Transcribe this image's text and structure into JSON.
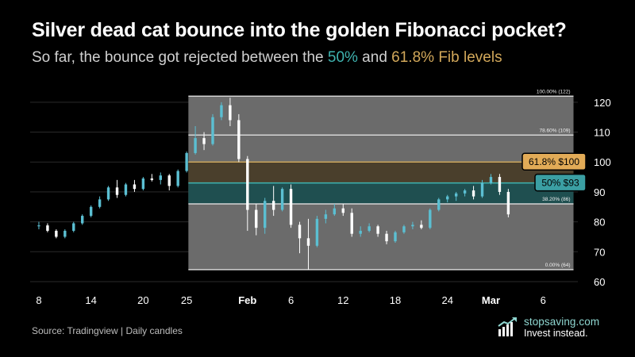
{
  "header": {
    "title": "Silver dead cat bounce into the golden Fibonacci pocket?",
    "subtitle_prefix": "So far, the bounce got rejected between the ",
    "subtitle_50": "50%",
    "subtitle_mid": " and ",
    "subtitle_618": "61.8% Fib levels"
  },
  "footer": {
    "source": "Source: Tradingview | Daily candles",
    "brand_name": "stopsaving.com",
    "brand_tagline": "Invest instead."
  },
  "colors": {
    "background": "#000000",
    "title": "#ffffff",
    "subtitle": "#cfcfcf",
    "teal": "#3fb3b0",
    "gold": "#d2a85a",
    "fib_box_fill": "#6b6b6b",
    "golden_pocket_fill": "#4a3f2c",
    "half_zone_fill": "#1f4f50",
    "candle_up": "#5bbfd2",
    "candle_down": "#ffffff",
    "fib_line": "#d4d4d4",
    "gold_line": "#c9a45b",
    "gridline": "#2a2a2a",
    "axis_text": "#ffffff"
  },
  "icons": {
    "brand": "bar-chart-growth-icon"
  },
  "chart_data": {
    "type": "candlestick",
    "y_axis": {
      "ylim": [
        60,
        125
      ],
      "ticks": [
        60,
        70,
        80,
        90,
        100,
        110,
        120
      ],
      "position": "right"
    },
    "x_axis": {
      "tick_labels": [
        {
          "text": "8",
          "index": 0,
          "bold": false
        },
        {
          "text": "14",
          "index": 6,
          "bold": false
        },
        {
          "text": "20",
          "index": 12,
          "bold": false
        },
        {
          "text": "25",
          "index": 17,
          "bold": false
        },
        {
          "text": "Feb",
          "index": 24,
          "bold": true
        },
        {
          "text": "6",
          "index": 29,
          "bold": false
        },
        {
          "text": "12",
          "index": 35,
          "bold": false
        },
        {
          "text": "18",
          "index": 41,
          "bold": false
        },
        {
          "text": "24",
          "index": 47,
          "bold": false
        },
        {
          "text": "Mar",
          "index": 52,
          "bold": true
        },
        {
          "text": "6",
          "index": 58,
          "bold": false
        }
      ],
      "visible_range": [
        -1,
        62
      ]
    },
    "fib_box": {
      "start_index": 17.2,
      "end_index": 61.5
    },
    "fib_levels": [
      {
        "ratio_label": "100.00% (122)",
        "value": 122,
        "style": "line"
      },
      {
        "ratio_label": "78.60% (109)",
        "value": 109,
        "style": "line"
      },
      {
        "ratio_label": "61.8% $100",
        "value": 100,
        "style": "badge-gold"
      },
      {
        "ratio_label": "50% $93",
        "value": 93,
        "style": "badge-teal"
      },
      {
        "ratio_label": "38.20% (86)",
        "value": 86,
        "style": "line"
      },
      {
        "ratio_label": "0.00% (64)",
        "value": 64,
        "style": "line"
      }
    ],
    "zones": [
      {
        "name": "golden pocket",
        "from": 93,
        "to": 100
      },
      {
        "name": "50% to 38.2%",
        "from": 86,
        "to": 93
      }
    ],
    "candles": [
      {
        "i": 0,
        "o": 78.5,
        "h": 80,
        "l": 77.5,
        "c": 78.8
      },
      {
        "i": 1,
        "o": 78.8,
        "h": 79.5,
        "l": 76.5,
        "c": 77.0
      },
      {
        "i": 2,
        "o": 77.0,
        "h": 77.5,
        "l": 74.5,
        "c": 75.0
      },
      {
        "i": 3,
        "o": 75.0,
        "h": 77.5,
        "l": 74.5,
        "c": 77.0
      },
      {
        "i": 4,
        "o": 77.0,
        "h": 80.0,
        "l": 76.5,
        "c": 79.5
      },
      {
        "i": 5,
        "o": 79.5,
        "h": 82.5,
        "l": 79.0,
        "c": 82.0
      },
      {
        "i": 6,
        "o": 82.0,
        "h": 85.5,
        "l": 81.5,
        "c": 85.0
      },
      {
        "i": 7,
        "o": 85.0,
        "h": 88.5,
        "l": 84.5,
        "c": 87.5
      },
      {
        "i": 8,
        "o": 87.5,
        "h": 92.0,
        "l": 87.0,
        "c": 91.5
      },
      {
        "i": 9,
        "o": 91.5,
        "h": 94.0,
        "l": 88.0,
        "c": 89.0
      },
      {
        "i": 10,
        "o": 89.0,
        "h": 93.0,
        "l": 88.5,
        "c": 92.5
      },
      {
        "i": 11,
        "o": 92.5,
        "h": 94.0,
        "l": 90.0,
        "c": 91.0
      },
      {
        "i": 12,
        "o": 91.0,
        "h": 95.0,
        "l": 90.5,
        "c": 94.5
      },
      {
        "i": 13,
        "o": 94.5,
        "h": 96.0,
        "l": 93.5,
        "c": 94.0
      },
      {
        "i": 14,
        "o": 94.0,
        "h": 96.5,
        "l": 92.5,
        "c": 95.5
      },
      {
        "i": 15,
        "o": 95.5,
        "h": 96.0,
        "l": 90.5,
        "c": 92.0
      },
      {
        "i": 16,
        "o": 92.0,
        "h": 97.5,
        "l": 91.5,
        "c": 97.0
      },
      {
        "i": 17,
        "o": 97.0,
        "h": 103.5,
        "l": 96.5,
        "c": 103.0
      },
      {
        "i": 18,
        "o": 103.0,
        "h": 112.0,
        "l": 102.5,
        "c": 108.0
      },
      {
        "i": 19,
        "o": 108.0,
        "h": 110.0,
        "l": 104.0,
        "c": 106.0
      },
      {
        "i": 20,
        "o": 106.0,
        "h": 116.0,
        "l": 105.5,
        "c": 115.0
      },
      {
        "i": 21,
        "o": 115.0,
        "h": 120.0,
        "l": 114.0,
        "c": 119.0
      },
      {
        "i": 22,
        "o": 119.0,
        "h": 121.5,
        "l": 112.0,
        "c": 114.0
      },
      {
        "i": 23,
        "o": 114.0,
        "h": 116.0,
        "l": 100.0,
        "c": 101.0
      },
      {
        "i": 24,
        "o": 101.0,
        "h": 102.0,
        "l": 77.0,
        "c": 84.0
      },
      {
        "i": 25,
        "o": 84.0,
        "h": 86.0,
        "l": 75.5,
        "c": 78.0
      },
      {
        "i": 26,
        "o": 78.0,
        "h": 88.0,
        "l": 76.0,
        "c": 87.0
      },
      {
        "i": 27,
        "o": 87.0,
        "h": 92.0,
        "l": 82.0,
        "c": 84.0
      },
      {
        "i": 28,
        "o": 84.0,
        "h": 91.5,
        "l": 83.5,
        "c": 91.0
      },
      {
        "i": 29,
        "o": 91.0,
        "h": 92.5,
        "l": 78.0,
        "c": 79.0
      },
      {
        "i": 30,
        "o": 79.0,
        "h": 80.0,
        "l": 69.5,
        "c": 74.5
      },
      {
        "i": 31,
        "o": 74.5,
        "h": 81.0,
        "l": 64.0,
        "c": 72.0
      },
      {
        "i": 32,
        "o": 72.0,
        "h": 82.0,
        "l": 71.5,
        "c": 81.0
      },
      {
        "i": 33,
        "o": 81.0,
        "h": 84.0,
        "l": 79.5,
        "c": 82.5
      },
      {
        "i": 34,
        "o": 82.5,
        "h": 86.0,
        "l": 82.0,
        "c": 84.5
      },
      {
        "i": 35,
        "o": 84.5,
        "h": 86.0,
        "l": 82.0,
        "c": 83.0
      },
      {
        "i": 36,
        "o": 83.0,
        "h": 84.5,
        "l": 75.0,
        "c": 76.0
      },
      {
        "i": 37,
        "o": 76.0,
        "h": 78.5,
        "l": 75.0,
        "c": 77.0
      },
      {
        "i": 38,
        "o": 77.0,
        "h": 79.5,
        "l": 76.5,
        "c": 78.5
      },
      {
        "i": 39,
        "o": 78.5,
        "h": 79.0,
        "l": 75.0,
        "c": 76.0
      },
      {
        "i": 40,
        "o": 76.0,
        "h": 77.0,
        "l": 72.5,
        "c": 73.5
      },
      {
        "i": 41,
        "o": 73.5,
        "h": 77.0,
        "l": 73.0,
        "c": 76.5
      },
      {
        "i": 42,
        "o": 76.5,
        "h": 79.0,
        "l": 76.0,
        "c": 78.5
      },
      {
        "i": 43,
        "o": 78.5,
        "h": 80.0,
        "l": 77.5,
        "c": 79.0
      },
      {
        "i": 44,
        "o": 79.0,
        "h": 80.5,
        "l": 77.5,
        "c": 78.0
      },
      {
        "i": 45,
        "o": 78.0,
        "h": 84.5,
        "l": 77.5,
        "c": 84.0
      },
      {
        "i": 46,
        "o": 84.0,
        "h": 88.0,
        "l": 83.5,
        "c": 87.5
      },
      {
        "i": 47,
        "o": 87.5,
        "h": 89.0,
        "l": 86.5,
        "c": 88.5
      },
      {
        "i": 48,
        "o": 88.5,
        "h": 90.0,
        "l": 87.0,
        "c": 89.5
      },
      {
        "i": 49,
        "o": 89.5,
        "h": 91.0,
        "l": 88.5,
        "c": 90.5
      },
      {
        "i": 50,
        "o": 90.5,
        "h": 92.0,
        "l": 87.5,
        "c": 88.5
      },
      {
        "i": 51,
        "o": 88.5,
        "h": 94.0,
        "l": 88.0,
        "c": 93.0
      },
      {
        "i": 52,
        "o": 93.0,
        "h": 96.0,
        "l": 92.5,
        "c": 95.0
      },
      {
        "i": 53,
        "o": 95.0,
        "h": 96.0,
        "l": 89.0,
        "c": 90.0
      },
      {
        "i": 54,
        "o": 90.0,
        "h": 91.0,
        "l": 81.5,
        "c": 82.5
      }
    ]
  }
}
